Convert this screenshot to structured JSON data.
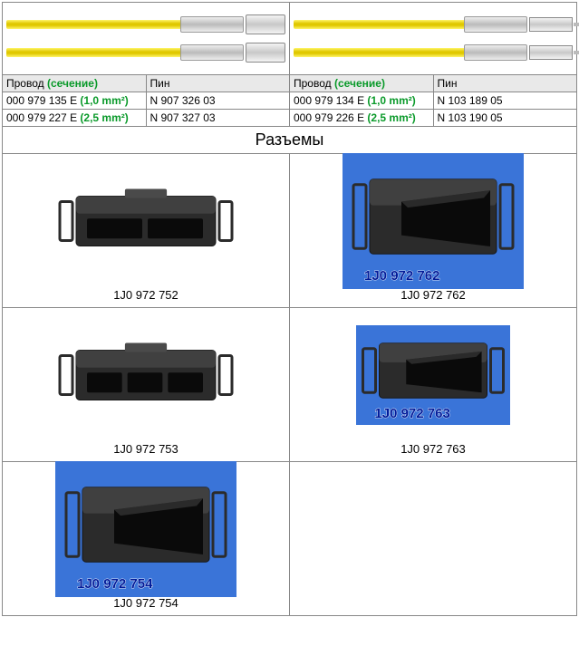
{
  "wire_table": {
    "headers": {
      "provod_label": "Провод",
      "provod_green": "(сечение)",
      "pin_label": "Пин"
    },
    "left_rows": [
      {
        "wire": "000 979 135 E",
        "sect": "(1,0 mm²)",
        "pin": "N 907 326 03"
      },
      {
        "wire": "000 979 227 E",
        "sect": "(2,5 mm²)",
        "pin": "N 907 327 03"
      }
    ],
    "right_rows": [
      {
        "wire": "000 979 134 E",
        "sect": "(1,0 mm²)",
        "pin": "N 103 189 05"
      },
      {
        "wire": "000 979 226 E",
        "sect": "(2,5 mm²)",
        "pin": "N 103 190 05"
      }
    ]
  },
  "section_title": "Разъемы",
  "connectors": [
    {
      "caption": "1J0 972 752",
      "style": "white",
      "slots": 2,
      "overlay": ""
    },
    {
      "caption": "1J0 972 762",
      "style": "blue",
      "slots": 1,
      "overlay": "1J0 972 762"
    },
    {
      "caption": "1J0 972 753",
      "style": "white",
      "slots": 3,
      "overlay": ""
    },
    {
      "caption": "1J0 972 763",
      "style": "blue-sm",
      "slots": 1,
      "overlay": "1J0 972 763"
    },
    {
      "caption": "1J0 972 754",
      "style": "blue",
      "slots": 4,
      "overlay": "1J0 972 754"
    },
    {
      "caption": "",
      "style": "empty",
      "slots": 0,
      "overlay": ""
    }
  ],
  "colors": {
    "border": "#888888",
    "hdr_bg": "#e9e9e9",
    "green": "#0a9a2a",
    "blue_bg": "#3a74d8",
    "overlay_text": "#001a99",
    "conn_body": "#2b2b2b",
    "conn_body_hi": "#4a4a4a",
    "conn_body_lo": "#161616"
  }
}
